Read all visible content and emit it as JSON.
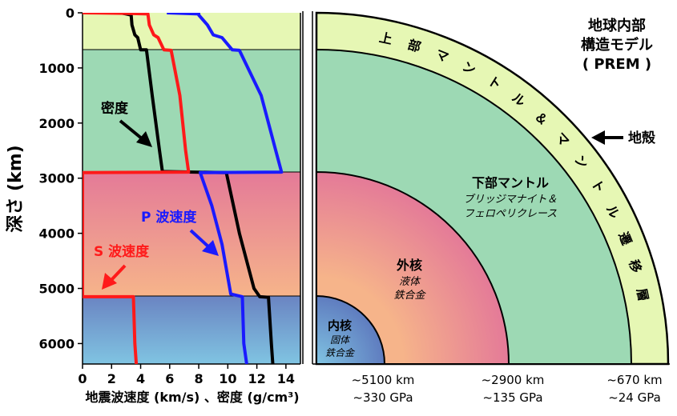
{
  "left_panel": {
    "ylabel": "深さ (km)",
    "xlabel": "地震波速度 (km/s) 、密度 (g/cm³)",
    "y_ticks": [
      "0",
      "1000",
      "2000",
      "3000",
      "4000",
      "5000",
      "6000"
    ],
    "x_ticks": [
      "0",
      "2",
      "4",
      "6",
      "8",
      "10",
      "12",
      "14"
    ],
    "label_density": "密度",
    "label_p": "P 波速度",
    "label_s": "S 波速度"
  },
  "right_panel": {
    "title_line1": "地球内部",
    "title_line2": "構造モデル",
    "title_line3": "( PREM )",
    "upper_mantle": "上部マントル＆マントル遷移層",
    "crust": "地殻",
    "lower_mantle": "下部マントル",
    "lower_mantle_sub1": "ブリッジマナイト＆",
    "lower_mantle_sub2": "フェロペリクレース",
    "outer_core": "外核",
    "outer_core_sub1": "液体",
    "outer_core_sub2": "鉄合金",
    "inner_core": "内核",
    "inner_core_sub1": "固体",
    "inner_core_sub2": "鉄合金",
    "bottom": [
      {
        "depth": "~5100 km",
        "pressure": "~330 GPa"
      },
      {
        "depth": "~2900 km",
        "pressure": "~135 GPa"
      },
      {
        "depth": "~670 km",
        "pressure": "~24 GPa"
      }
    ]
  },
  "colors": {
    "p_wave": "#1a1aff",
    "s_wave": "#ff1a1a",
    "density": "#000000",
    "upper_mantle": "#e6f7b4",
    "lower_mantle": "#9dd9b4",
    "outer_core_top": "#e27a96",
    "outer_core_bottom": "#f7b28a",
    "inner_core_top": "#6f88c6",
    "inner_core_bottom": "#7cbfe0"
  },
  "chart_data": {
    "type": "line",
    "xlabel": "地震波速度 (km/s) 、密度 (g/cm³)",
    "ylabel": "深さ (km)",
    "xlim": [
      0,
      15
    ],
    "ylim": [
      6371,
      0
    ],
    "layer_boundaries_km": [
      670,
      2900,
      5150
    ],
    "series": [
      {
        "name": "密度",
        "color": "#000000",
        "points": [
          [
            2.6,
            0
          ],
          [
            3.0,
            20
          ],
          [
            3.35,
            40
          ],
          [
            3.4,
            220
          ],
          [
            3.6,
            400
          ],
          [
            3.8,
            450
          ],
          [
            4.0,
            670
          ],
          [
            4.4,
            671
          ],
          [
            4.8,
            1500
          ],
          [
            5.3,
            2500
          ],
          [
            5.5,
            2880
          ],
          [
            9.9,
            2900
          ],
          [
            10.8,
            4000
          ],
          [
            11.8,
            5000
          ],
          [
            12.2,
            5150
          ],
          [
            12.8,
            5160
          ],
          [
            13.0,
            6000
          ],
          [
            13.1,
            6371
          ]
        ]
      },
      {
        "name": "P 波速度",
        "color": "#1a1aff",
        "points": [
          [
            5.8,
            0
          ],
          [
            8.0,
            20
          ],
          [
            8.0,
            40
          ],
          [
            8.6,
            220
          ],
          [
            9.0,
            400
          ],
          [
            9.6,
            450
          ],
          [
            10.3,
            670
          ],
          [
            10.8,
            680
          ],
          [
            12.3,
            1500
          ],
          [
            13.3,
            2500
          ],
          [
            13.7,
            2890
          ],
          [
            8.1,
            2900
          ],
          [
            8.9,
            3500
          ],
          [
            9.6,
            4200
          ],
          [
            10.2,
            5100
          ],
          [
            11.0,
            5150
          ],
          [
            11.1,
            6000
          ],
          [
            11.3,
            6371
          ]
        ]
      },
      {
        "name": "S 波速度",
        "color": "#ff1a1a",
        "points": [
          [
            0.0,
            0
          ],
          [
            3.2,
            10
          ],
          [
            4.5,
            20
          ],
          [
            4.6,
            220
          ],
          [
            4.9,
            400
          ],
          [
            5.2,
            450
          ],
          [
            5.6,
            670
          ],
          [
            6.1,
            680
          ],
          [
            6.7,
            1500
          ],
          [
            7.1,
            2500
          ],
          [
            7.3,
            2890
          ],
          [
            0.0,
            2900
          ],
          [
            0.0,
            5150
          ],
          [
            3.5,
            5150
          ],
          [
            3.6,
            6000
          ],
          [
            3.7,
            6371
          ]
        ]
      }
    ]
  }
}
